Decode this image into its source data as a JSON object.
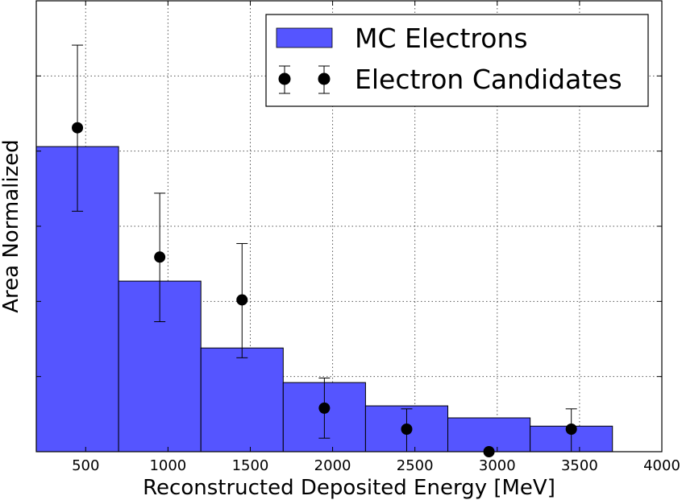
{
  "chart_data": {
    "type": "bar",
    "xlabel": "Reconstructed Deposited Energy [MeV]",
    "ylabel": "Area Normalized",
    "xlim": [
      200,
      4000
    ],
    "ylim": [
      0,
      0.6
    ],
    "x_ticks": [
      500,
      1000,
      1500,
      2000,
      2500,
      3000,
      3500,
      4000
    ],
    "y_ticks": [
      0,
      0.1,
      0.2,
      0.3,
      0.4,
      0.5,
      0.6
    ],
    "grid": true,
    "legend_position": "top-right",
    "bin_edges": [
      200,
      700,
      1200,
      1700,
      2200,
      2700,
      3200,
      3700
    ],
    "series": [
      {
        "name": "MC Electrons",
        "kind": "histogram",
        "color": "#5555ff",
        "values": [
          0.406,
          0.227,
          0.138,
          0.092,
          0.061,
          0.045,
          0.034
        ]
      },
      {
        "name": "Electron Candidates",
        "kind": "errorbar",
        "color": "#000000",
        "x": [
          450,
          950,
          1450,
          1950,
          2450,
          2950,
          3450
        ],
        "y": [
          0.431,
          0.259,
          0.202,
          0.058,
          0.03,
          0.0,
          0.03
        ],
        "yerr_low": [
          0.111,
          0.086,
          0.077,
          0.04,
          0.03,
          0.0,
          0.03
        ],
        "yerr_high": [
          0.11,
          0.085,
          0.075,
          0.04,
          0.027,
          0.0,
          0.027
        ]
      }
    ]
  }
}
